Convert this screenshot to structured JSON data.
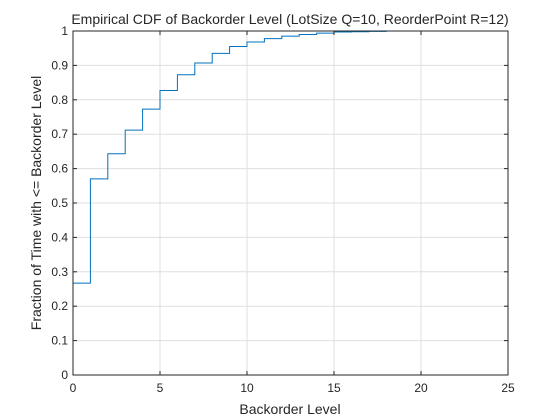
{
  "chart_data": {
    "type": "line",
    "style": "stairs",
    "title": "Empirical CDF of Backorder Level  (LotSize Q=10, ReorderPoint R=12)",
    "xlabel": "Backorder Level",
    "ylabel": "Fraction of Time with <= Backorder Level",
    "xlim": [
      0,
      25
    ],
    "ylim": [
      0,
      1
    ],
    "xticks": [
      0,
      5,
      10,
      15,
      20,
      25
    ],
    "yticks": [
      0,
      0.1,
      0.2,
      0.3,
      0.4,
      0.5,
      0.6,
      0.7,
      0.8,
      0.9,
      1
    ],
    "grid": true,
    "series": [
      {
        "color": "#0072bd",
        "x": [
          0,
          1,
          2,
          3,
          4,
          5,
          6,
          7,
          8,
          9,
          10,
          11,
          12,
          13,
          14,
          15,
          16,
          17,
          18,
          19,
          20,
          21,
          22,
          23,
          24,
          25
        ],
        "y": [
          0.267,
          0.57,
          0.643,
          0.712,
          0.773,
          0.827,
          0.873,
          0.907,
          0.935,
          0.955,
          0.968,
          0.978,
          0.985,
          0.99,
          0.994,
          0.997,
          0.998,
          0.999,
          1.0,
          1.0,
          1.0,
          1.0,
          1.0,
          1.0,
          1.0,
          1.0
        ]
      }
    ]
  }
}
